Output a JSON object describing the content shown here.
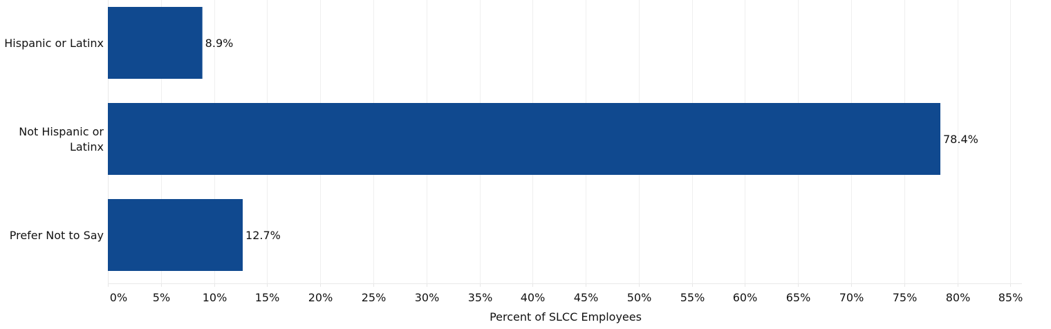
{
  "chart_data": {
    "type": "bar",
    "orientation": "horizontal",
    "categories": [
      [
        "Hispanic or Latinx"
      ],
      [
        "Not Hispanic or",
        "Latinx"
      ],
      [
        "Prefer Not to Say"
      ]
    ],
    "values": [
      8.9,
      78.4,
      12.7
    ],
    "data_labels": [
      "8.9%",
      "78.4%",
      "12.7%"
    ],
    "title": "",
    "xlabel": "Percent of SLCC Employees",
    "ylabel": "",
    "xlim": [
      0,
      85
    ],
    "xticks": [
      0,
      5,
      10,
      15,
      20,
      25,
      30,
      35,
      40,
      45,
      50,
      55,
      60,
      65,
      70,
      75,
      80,
      85
    ],
    "xtick_labels": [
      "0%",
      "5%",
      "10%",
      "15%",
      "20%",
      "25%",
      "30%",
      "35%",
      "40%",
      "45%",
      "50%",
      "55%",
      "60%",
      "65%",
      "70%",
      "75%",
      "80%",
      "85%"
    ],
    "grid": true,
    "bar_color": "#10498f",
    "grid_color": "#efefef"
  }
}
